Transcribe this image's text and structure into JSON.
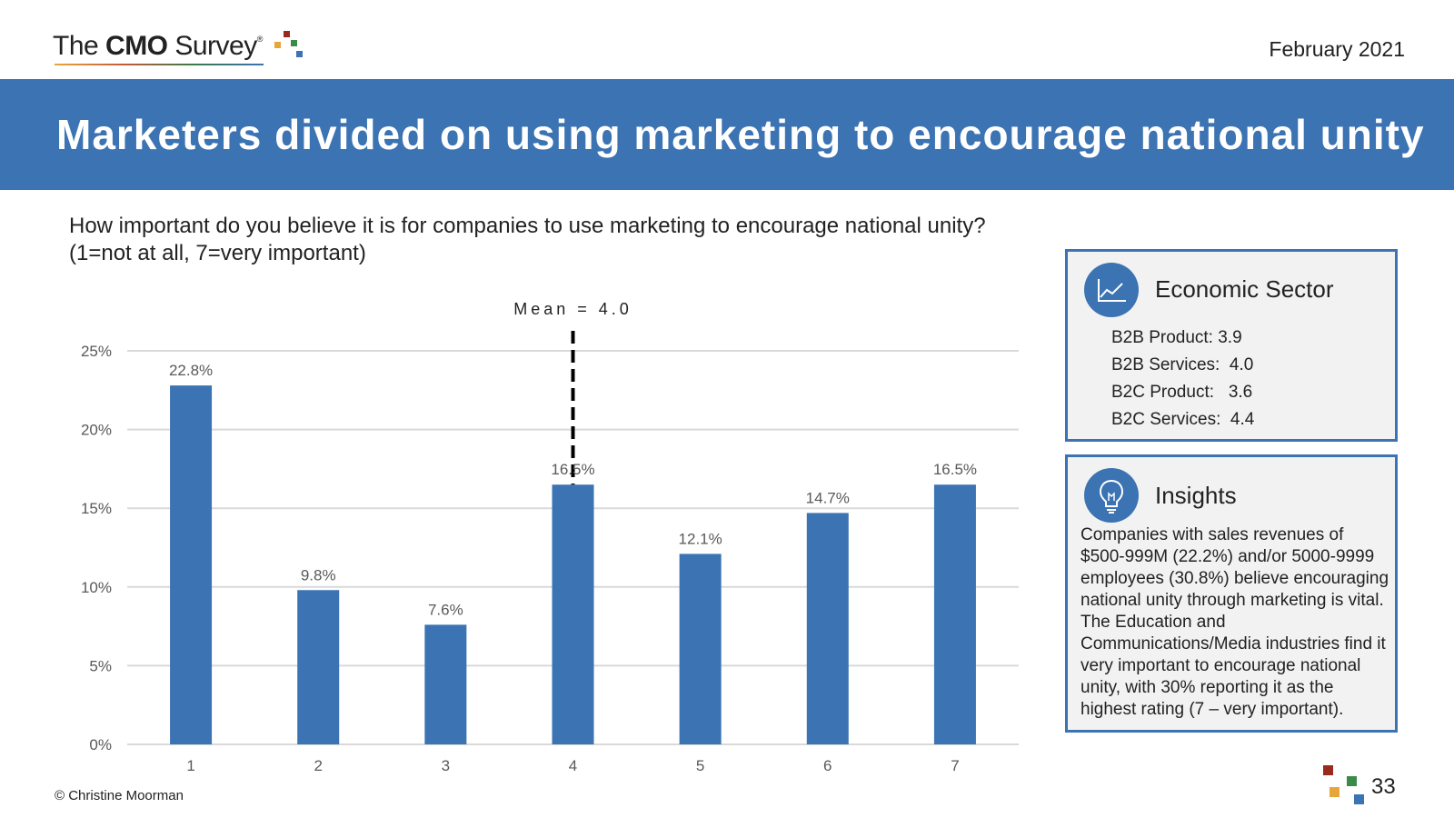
{
  "header": {
    "logo": {
      "prefix": "The ",
      "bold": "CMO",
      "suffix": " Survey",
      "reg": "®"
    },
    "date": "February 2021"
  },
  "banner": {
    "title": "Marketers divided on using marketing to encourage national unity"
  },
  "question": "How important do you believe it is for companies to use marketing to encourage national unity? (1=not at all, 7=very important)",
  "chart_data": {
    "type": "bar",
    "categories": [
      "1",
      "2",
      "3",
      "4",
      "5",
      "6",
      "7"
    ],
    "values": [
      22.8,
      9.8,
      7.6,
      16.5,
      12.1,
      14.7,
      16.5
    ],
    "data_labels": [
      "22.8%",
      "9.8%",
      "7.6%",
      "16.5%",
      "12.1%",
      "14.7%",
      "16.5%"
    ],
    "y_ticks": [
      0,
      5,
      10,
      15,
      20,
      25
    ],
    "y_tick_labels": [
      "0%",
      "5%",
      "10%",
      "15%",
      "20%",
      "25%"
    ],
    "ylim": [
      0,
      25
    ],
    "title": "",
    "xlabel": "",
    "ylabel": "",
    "grid": true,
    "bar_color": "#3b73b3",
    "mean_line": {
      "category": "4",
      "label": "Mean = 4.0"
    }
  },
  "sector_box": {
    "title": "Economic Sector",
    "icon": "line-chart-icon",
    "rows": [
      "B2B Product: 3.9",
      "B2B Services:  4.0",
      "B2C Product:   3.6",
      "B2C Services:  4.4"
    ]
  },
  "insights_box": {
    "title": "Insights",
    "icon": "lightbulb-icon",
    "text": "Companies with sales revenues of $500-999M (22.2%) and/or 5000-9999 employees (30.8%) believe encouraging national unity through marketing is vital. The Education and Communications/Media industries find it very important to encourage national unity, with 30% reporting it as the highest rating (7 – very important)."
  },
  "footer": {
    "copyright": "© Christine Moorman",
    "page_number": "33"
  },
  "colors": {
    "accent": "#3b73b3",
    "logo_squares": [
      "#9b2a1e",
      "#e8a63a",
      "#3a8a4a",
      "#3b73b3"
    ]
  }
}
